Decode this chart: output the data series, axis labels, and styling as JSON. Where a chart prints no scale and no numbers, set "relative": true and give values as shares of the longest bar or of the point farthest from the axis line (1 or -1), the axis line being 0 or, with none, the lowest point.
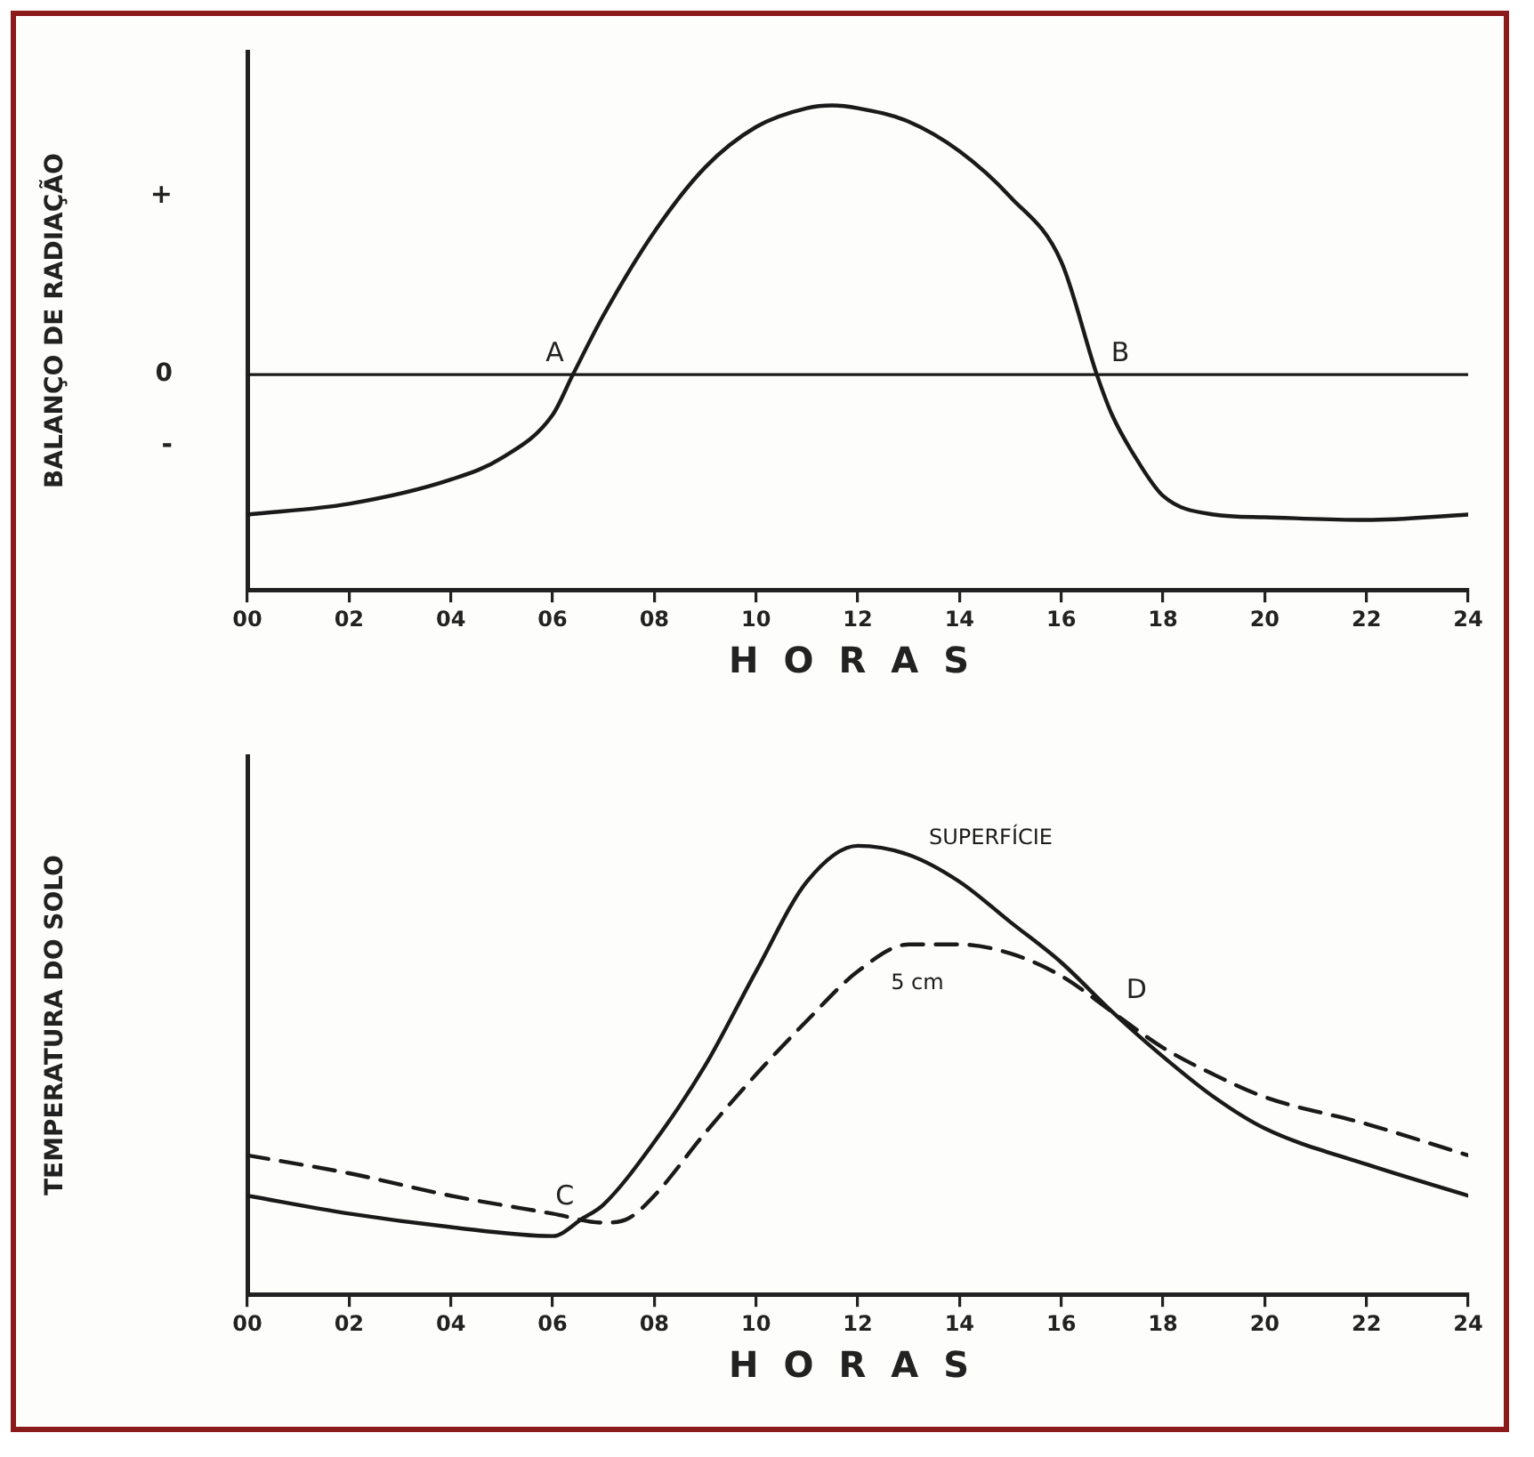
{
  "chart_data": [
    {
      "type": "line",
      "ylabel": "BALANÇO DE RADIAÇÃO",
      "xlabel": "HORAS",
      "relative": true,
      "legend": false,
      "grid": false,
      "marker": "none",
      "line_style": "solid",
      "tick_labels": "x",
      "color": "#1a1a1a",
      "x": [
        0,
        2,
        4,
        5,
        6,
        6.4,
        7,
        8,
        9,
        10,
        11,
        11.5,
        12,
        13,
        14,
        15,
        16,
        16.7,
        17,
        17.5,
        18,
        19,
        20,
        22,
        24
      ],
      "values": [
        -0.52,
        -0.48,
        -0.39,
        -0.31,
        -0.15,
        0,
        0.22,
        0.53,
        0.77,
        0.92,
        0.99,
        1,
        0.99,
        0.94,
        0.83,
        0.66,
        0.42,
        0,
        -0.15,
        -0.32,
        -0.45,
        -0.52,
        -0.53,
        -0.54,
        -0.52
      ],
      "xlim": [
        0,
        24
      ],
      "xticks": [
        {
          "value": 0,
          "label": "00"
        },
        {
          "value": 2,
          "label": "02"
        },
        {
          "value": 4,
          "label": "04"
        },
        {
          "value": 6,
          "label": "06"
        },
        {
          "value": 8,
          "label": "08"
        },
        10,
        12,
        14,
        16,
        18,
        20,
        22,
        24
      ],
      "ref_lines": [
        {
          "axis": "y",
          "value": 0,
          "label": "0",
          "color": "#1a1a1a"
        }
      ],
      "annotations": [
        "+",
        "-",
        {
          "text": "A",
          "x": 6.4,
          "y": 0
        },
        {
          "text": "B",
          "x": 16.7,
          "y": 0
        }
      ]
    },
    {
      "type": "line",
      "ylabel": "TEMPERATURA DO SOLO",
      "xlabel": "HORAS",
      "relative": true,
      "legend": false,
      "grid": false,
      "marker": "none",
      "tick_labels": "x",
      "x": [
        0,
        2,
        4,
        6,
        6.6,
        7,
        8,
        9,
        10,
        11,
        12,
        13,
        14,
        15,
        16,
        17,
        18,
        19,
        20,
        22,
        24
      ],
      "series": [
        {
          "name": "SUPERFÍCIE",
          "color": "#1a1a1a",
          "line_style": "solid",
          "values": [
            0.22,
            0.18,
            0.15,
            0.13,
            0.17,
            0.2,
            0.34,
            0.51,
            0.72,
            0.92,
            1,
            0.98,
            0.92,
            0.83,
            0.74,
            0.63,
            0.53,
            0.44,
            0.37,
            0.29,
            0.22
          ]
        },
        {
          "name": "5 cm",
          "color": "#1a1a1a",
          "line_style": "dashed",
          "x": [
            0,
            2,
            4,
            6,
            7,
            7.5,
            8,
            9,
            10,
            11,
            12,
            13,
            14,
            15,
            16,
            17,
            18,
            19,
            20,
            22,
            24
          ],
          "values": [
            0.31,
            0.27,
            0.22,
            0.18,
            0.16,
            0.17,
            0.22,
            0.36,
            0.49,
            0.61,
            0.72,
            0.78,
            0.78,
            0.76,
            0.71,
            0.63,
            0.55,
            0.49,
            0.44,
            0.38,
            0.31
          ]
        }
      ],
      "xlim": [
        0,
        24
      ],
      "xticks": [
        {
          "value": 0,
          "label": "00"
        },
        {
          "value": 2,
          "label": "02"
        },
        {
          "value": 4,
          "label": "04"
        },
        {
          "value": 6,
          "label": "06"
        },
        {
          "value": 8,
          "label": "08"
        },
        10,
        12,
        14,
        16,
        18,
        20,
        22,
        24
      ],
      "annotations": [
        {
          "text": "C",
          "x": 6.6,
          "y": 0.17
        },
        {
          "text": "D",
          "x": 17,
          "y": 0.63
        }
      ]
    }
  ]
}
